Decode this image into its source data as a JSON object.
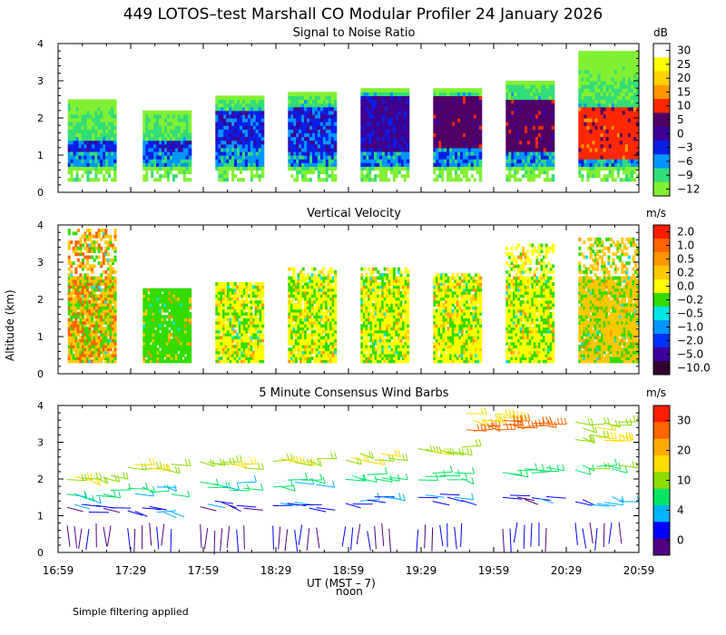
{
  "page": {
    "title": "449 LOTOS–test Marshall CO Modular Profiler 24 January 2026",
    "footnote": "Simple filtering applied"
  },
  "axes": {
    "ylabel": "Altitude (km)",
    "xlabel": "UT  (MST – 7)",
    "noon_label": "noon",
    "x_ticks": [
      "16:59",
      "17:29",
      "17:59",
      "18:29",
      "18:59",
      "19:29",
      "19:59",
      "20:29",
      "20:59"
    ],
    "y_ticks": [
      "0",
      "1",
      "2",
      "3",
      "4"
    ]
  },
  "panels": {
    "snr": {
      "title": "Signal to Noise Ratio",
      "unit": "dB",
      "scale_labels": [
        "30",
        "25",
        "20",
        "15",
        "10",
        "5",
        "0",
        "−3",
        "−6",
        "−9",
        "−12"
      ],
      "scale_colors": [
        "#ffffff",
        "#ffff00",
        "#ffd200",
        "#ff9600",
        "#ff2800",
        "#500064",
        "#3c0096",
        "#0a1ee6",
        "#0096ff",
        "#32dc78",
        "#82f032"
      ]
    },
    "velocity": {
      "title": "Vertical Velocity",
      "unit": "m/s",
      "scale_labels": [
        "2.0",
        "1.0",
        "0.5",
        "0.2",
        "0.0",
        "−0.2",
        "−0.5",
        "−1.0",
        "−2.0",
        "−5.0",
        "−10.0"
      ],
      "scale_colors": [
        "#ff1e00",
        "#ff6400",
        "#ff9600",
        "#ffc800",
        "#ffff00",
        "#32dc00",
        "#00e6e6",
        "#0096ff",
        "#0032ff",
        "#3c00a0",
        "#320032"
      ]
    },
    "wind": {
      "title": "5 Minute Consensus Wind Barbs",
      "unit": "m/s",
      "scale_labels": [
        "30",
        "20",
        "10",
        "4",
        "0"
      ],
      "scale_colors": [
        "#ff1e00",
        "#ff6400",
        "#ffaa00",
        "#ffdc00",
        "#8cdc00",
        "#00e664",
        "#00b4ff",
        "#0000ff",
        "#500080"
      ]
    }
  },
  "chart_data": [
    {
      "type": "heatmap",
      "title": "Signal to Noise Ratio",
      "xlabel": "UT (MST - 7)",
      "ylabel": "Altitude (km)",
      "ylim": [
        0,
        4
      ],
      "xlim": [
        "16:59",
        "20:59"
      ],
      "units": "dB",
      "segments": [
        {
          "start": "17:03",
          "end": "17:23",
          "top_km": 2.5,
          "core_snr_db": -3,
          "core_km": [
            1.0,
            1.4
          ]
        },
        {
          "start": "17:34",
          "end": "17:54",
          "top_km": 2.2,
          "core_snr_db": -3,
          "core_km": [
            1.0,
            1.3
          ]
        },
        {
          "start": "18:04",
          "end": "18:24",
          "top_km": 2.6,
          "core_snr_db": -3,
          "core_km": [
            1.1,
            2.2
          ]
        },
        {
          "start": "18:34",
          "end": "18:54",
          "top_km": 2.7,
          "core_snr_db": -3,
          "core_km": [
            0.9,
            2.3
          ]
        },
        {
          "start": "19:04",
          "end": "19:24",
          "top_km": 2.8,
          "core_snr_db": 0,
          "core_km": [
            1.0,
            2.6
          ]
        },
        {
          "start": "19:34",
          "end": "19:54",
          "top_km": 2.8,
          "core_snr_db": 5,
          "core_km": [
            1.2,
            2.6
          ]
        },
        {
          "start": "20:04",
          "end": "20:24",
          "top_km": 3.0,
          "core_snr_db": 5,
          "core_km": [
            1.0,
            2.5
          ]
        },
        {
          "start": "20:34",
          "end": "20:59",
          "top_km": 3.8,
          "core_snr_db": 10,
          "core_km": [
            0.8,
            2.3
          ]
        }
      ]
    },
    {
      "type": "heatmap",
      "title": "Vertical Velocity",
      "xlabel": "UT (MST - 7)",
      "ylabel": "Altitude (km)",
      "ylim": [
        0,
        4
      ],
      "xlim": [
        "16:59",
        "20:59"
      ],
      "units": "m/s",
      "segments": [
        {
          "start": "17:03",
          "end": "17:23",
          "top_km": 3.9,
          "dominant_m_s": 0.2
        },
        {
          "start": "17:34",
          "end": "17:54",
          "top_km": 2.3,
          "dominant_m_s": -0.2
        },
        {
          "start": "18:04",
          "end": "18:24",
          "top_km": 2.4,
          "dominant_m_s": 0.0
        },
        {
          "start": "18:34",
          "end": "18:54",
          "top_km": 2.8,
          "dominant_m_s": 0.0
        },
        {
          "start": "19:04",
          "end": "19:24",
          "top_km": 2.8,
          "dominant_m_s": 0.0
        },
        {
          "start": "19:34",
          "end": "19:54",
          "top_km": 2.7,
          "dominant_m_s": 0.0
        },
        {
          "start": "20:04",
          "end": "20:24",
          "top_km": 3.5,
          "dominant_m_s": 0.0
        },
        {
          "start": "20:34",
          "end": "20:59",
          "top_km": 3.6,
          "dominant_m_s": 0.2
        }
      ]
    },
    {
      "type": "scatter",
      "subtype": "wind_barbs",
      "title": "5 Minute Consensus Wind Barbs",
      "xlabel": "UT (MST - 7)",
      "ylabel": "Altitude (km)",
      "ylim": [
        0,
        4
      ],
      "xlim": [
        "16:59",
        "20:59"
      ],
      "units": "m/s",
      "profiles": [
        {
          "time": "17:05",
          "speeds_by_alt": [
            [
              0.7,
              1
            ],
            [
              1.2,
              3
            ],
            [
              1.6,
              6
            ],
            [
              2.1,
              12
            ]
          ]
        },
        {
          "time": "17:30",
          "speeds_by_alt": [
            [
              0.7,
              2
            ],
            [
              1.2,
              4
            ],
            [
              1.7,
              6
            ],
            [
              2.3,
              13
            ]
          ]
        },
        {
          "time": "18:00",
          "speeds_by_alt": [
            [
              0.7,
              2
            ],
            [
              1.3,
              3
            ],
            [
              1.8,
              7
            ],
            [
              2.4,
              12
            ]
          ]
        },
        {
          "time": "18:30",
          "speeds_by_alt": [
            [
              0.7,
              2
            ],
            [
              1.3,
              3
            ],
            [
              1.9,
              7
            ],
            [
              2.5,
              12
            ]
          ]
        },
        {
          "time": "19:00",
          "speeds_by_alt": [
            [
              0.7,
              2
            ],
            [
              1.4,
              4
            ],
            [
              2.0,
              8
            ],
            [
              2.6,
              12
            ]
          ]
        },
        {
          "time": "19:30",
          "speeds_by_alt": [
            [
              0.7,
              2
            ],
            [
              1.5,
              4
            ],
            [
              2.1,
              8
            ],
            [
              2.8,
              12
            ]
          ]
        },
        {
          "time": "19:50",
          "speeds_by_alt": [
            [
              3.4,
              22
            ],
            [
              3.7,
              14
            ]
          ]
        },
        {
          "time": "20:05",
          "speeds_by_alt": [
            [
              0.7,
              2
            ],
            [
              1.5,
              3
            ],
            [
              2.2,
              8
            ],
            [
              3.5,
              22
            ]
          ]
        },
        {
          "time": "20:35",
          "speeds_by_alt": [
            [
              0.7,
              2
            ],
            [
              1.4,
              4
            ],
            [
              2.3,
              10
            ],
            [
              3.1,
              14
            ],
            [
              3.5,
              13
            ]
          ]
        }
      ]
    }
  ]
}
